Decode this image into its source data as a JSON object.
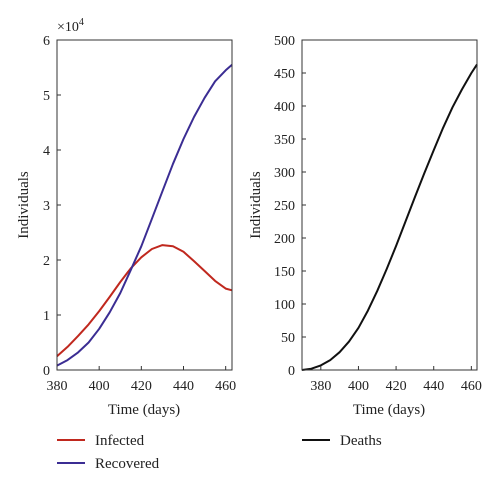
{
  "chart_data": [
    {
      "type": "line",
      "multiplier_label": "×10",
      "multiplier_exponent": "4",
      "xlabel": "Time (days)",
      "ylabel": "Individuals",
      "xlim": [
        380,
        463
      ],
      "ylim": [
        0,
        6
      ],
      "x_ticks": [
        "380",
        "400",
        "420",
        "440",
        "460"
      ],
      "y_ticks": [
        "0",
        "1",
        "2",
        "3",
        "4",
        "5",
        "6"
      ],
      "grid": false,
      "series": [
        {
          "name": "Infected",
          "color": "#c0281e",
          "x": [
            380,
            385,
            390,
            395,
            400,
            405,
            410,
            415,
            420,
            425,
            430,
            435,
            440,
            445,
            450,
            455,
            460,
            463
          ],
          "y": [
            0.25,
            0.42,
            0.62,
            0.83,
            1.07,
            1.33,
            1.6,
            1.85,
            2.05,
            2.2,
            2.27,
            2.25,
            2.15,
            1.98,
            1.8,
            1.62,
            1.48,
            1.45
          ]
        },
        {
          "name": "Recovered",
          "color": "#3b2d93",
          "x": [
            380,
            385,
            390,
            395,
            400,
            405,
            410,
            415,
            420,
            425,
            430,
            435,
            440,
            445,
            450,
            455,
            460,
            463
          ],
          "y": [
            0.08,
            0.18,
            0.32,
            0.5,
            0.75,
            1.05,
            1.4,
            1.82,
            2.25,
            2.75,
            3.25,
            3.75,
            4.2,
            4.6,
            4.95,
            5.25,
            5.45,
            5.55
          ]
        }
      ]
    },
    {
      "type": "line",
      "xlabel": "Time (days)",
      "ylabel": "Individuals",
      "xlim": [
        370,
        463
      ],
      "ylim": [
        0,
        500
      ],
      "x_ticks": [
        "380",
        "400",
        "420",
        "440",
        "460"
      ],
      "y_ticks": [
        "0",
        "50",
        "100",
        "150",
        "200",
        "250",
        "300",
        "350",
        "400",
        "450",
        "500"
      ],
      "grid": false,
      "series": [
        {
          "name": "Deaths",
          "color": "#111111",
          "x": [
            370,
            375,
            380,
            385,
            390,
            395,
            400,
            405,
            410,
            415,
            420,
            425,
            430,
            435,
            440,
            445,
            450,
            455,
            460,
            463
          ],
          "y": [
            0,
            2,
            7,
            15,
            27,
            43,
            64,
            90,
            120,
            153,
            188,
            225,
            262,
            298,
            333,
            367,
            398,
            425,
            450,
            463
          ]
        }
      ]
    }
  ],
  "legend": {
    "items": [
      {
        "label": "Infected",
        "color": "#c0281e"
      },
      {
        "label": "Recovered",
        "color": "#3b2d93"
      },
      {
        "label": "Deaths",
        "color": "#111111"
      }
    ]
  }
}
